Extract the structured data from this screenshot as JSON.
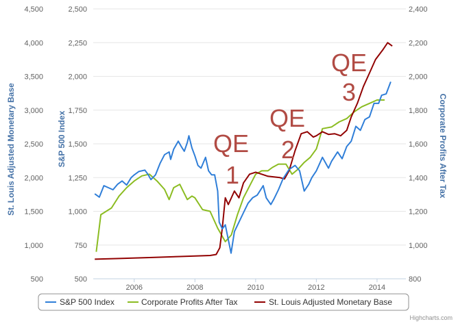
{
  "chart_data": {
    "type": "line",
    "x_ticks": [
      "2006",
      "2008",
      "2010",
      "2012",
      "2014"
    ],
    "axes": {
      "left_outer": {
        "label": "St. Louis Adjusted Monetary Base",
        "ticks": [
          "500",
          "1,000",
          "1,500",
          "2,000",
          "2,500",
          "3,000",
          "3,500",
          "4,000",
          "4,500"
        ],
        "range": [
          500,
          4500
        ]
      },
      "left_inner": {
        "label": "S&P 500 Index",
        "ticks": [
          "500",
          "750",
          "1,000",
          "1,250",
          "1,500",
          "1,750",
          "2,000",
          "2,250",
          "2,500"
        ],
        "range": [
          500,
          2500
        ]
      },
      "right": {
        "label": "Corporate Profits After Tax",
        "ticks": [
          "800",
          "1,000",
          "1,200",
          "1,400",
          "1,600",
          "1,800",
          "2,000",
          "2,200",
          "2,400"
        ],
        "range": [
          800,
          2400
        ]
      }
    },
    "xlim": [
      2004.65,
      2014.95
    ],
    "series": [
      {
        "name": "S&P 500 Index",
        "color": "#2f7ed8",
        "axis": "left_inner",
        "points": [
          [
            2004.7,
            1130
          ],
          [
            2004.85,
            1105
          ],
          [
            2005.0,
            1190
          ],
          [
            2005.15,
            1175
          ],
          [
            2005.3,
            1160
          ],
          [
            2005.45,
            1200
          ],
          [
            2005.6,
            1225
          ],
          [
            2005.75,
            1195
          ],
          [
            2005.9,
            1250
          ],
          [
            2006.0,
            1270
          ],
          [
            2006.15,
            1295
          ],
          [
            2006.35,
            1305
          ],
          [
            2006.45,
            1275
          ],
          [
            2006.55,
            1235
          ],
          [
            2006.7,
            1270
          ],
          [
            2006.85,
            1355
          ],
          [
            2007.0,
            1420
          ],
          [
            2007.15,
            1440
          ],
          [
            2007.2,
            1385
          ],
          [
            2007.3,
            1460
          ],
          [
            2007.45,
            1520
          ],
          [
            2007.55,
            1480
          ],
          [
            2007.65,
            1445
          ],
          [
            2007.75,
            1510
          ],
          [
            2007.8,
            1560
          ],
          [
            2007.9,
            1470
          ],
          [
            2008.0,
            1410
          ],
          [
            2008.1,
            1340
          ],
          [
            2008.2,
            1320
          ],
          [
            2008.35,
            1400
          ],
          [
            2008.45,
            1300
          ],
          [
            2008.55,
            1270
          ],
          [
            2008.65,
            1270
          ],
          [
            2008.75,
            1150
          ],
          [
            2008.8,
            920
          ],
          [
            2008.9,
            870
          ],
          [
            2009.0,
            900
          ],
          [
            2009.1,
            790
          ],
          [
            2009.19,
            690
          ],
          [
            2009.3,
            850
          ],
          [
            2009.45,
            920
          ],
          [
            2009.6,
            990
          ],
          [
            2009.75,
            1060
          ],
          [
            2009.9,
            1100
          ],
          [
            2010.05,
            1120
          ],
          [
            2010.25,
            1190
          ],
          [
            2010.35,
            1100
          ],
          [
            2010.5,
            1050
          ],
          [
            2010.6,
            1090
          ],
          [
            2010.75,
            1160
          ],
          [
            2010.9,
            1240
          ],
          [
            2011.1,
            1310
          ],
          [
            2011.3,
            1340
          ],
          [
            2011.45,
            1300
          ],
          [
            2011.6,
            1150
          ],
          [
            2011.75,
            1200
          ],
          [
            2011.85,
            1250
          ],
          [
            2012.0,
            1300
          ],
          [
            2012.2,
            1400
          ],
          [
            2012.4,
            1320
          ],
          [
            2012.5,
            1370
          ],
          [
            2012.7,
            1440
          ],
          [
            2012.85,
            1390
          ],
          [
            2013.0,
            1480
          ],
          [
            2013.15,
            1520
          ],
          [
            2013.3,
            1630
          ],
          [
            2013.45,
            1600
          ],
          [
            2013.6,
            1680
          ],
          [
            2013.75,
            1700
          ],
          [
            2013.9,
            1800
          ],
          [
            2014.05,
            1800
          ],
          [
            2014.15,
            1860
          ],
          [
            2014.3,
            1870
          ],
          [
            2014.45,
            1960
          ]
        ]
      },
      {
        "name": "Corporate Profits After Tax",
        "color": "#8bbc21",
        "axis": "right",
        "points": [
          [
            2004.75,
            960
          ],
          [
            2004.9,
            1180
          ],
          [
            2005.25,
            1220
          ],
          [
            2005.5,
            1290
          ],
          [
            2005.75,
            1340
          ],
          [
            2006.0,
            1380
          ],
          [
            2006.25,
            1410
          ],
          [
            2006.5,
            1420
          ],
          [
            2006.75,
            1380
          ],
          [
            2007.0,
            1330
          ],
          [
            2007.15,
            1270
          ],
          [
            2007.3,
            1340
          ],
          [
            2007.5,
            1360
          ],
          [
            2007.75,
            1270
          ],
          [
            2007.9,
            1290
          ],
          [
            2008.0,
            1280
          ],
          [
            2008.25,
            1210
          ],
          [
            2008.5,
            1200
          ],
          [
            2008.75,
            1100
          ],
          [
            2009.0,
            1020
          ],
          [
            2009.2,
            1060
          ],
          [
            2009.4,
            1180
          ],
          [
            2009.6,
            1280
          ],
          [
            2009.8,
            1350
          ],
          [
            2010.0,
            1420
          ],
          [
            2010.2,
            1440
          ],
          [
            2010.4,
            1440
          ],
          [
            2010.55,
            1460
          ],
          [
            2010.75,
            1480
          ],
          [
            2011.0,
            1480
          ],
          [
            2011.2,
            1420
          ],
          [
            2011.4,
            1450
          ],
          [
            2011.6,
            1490
          ],
          [
            2011.8,
            1520
          ],
          [
            2012.0,
            1570
          ],
          [
            2012.2,
            1690
          ],
          [
            2012.5,
            1700
          ],
          [
            2012.75,
            1730
          ],
          [
            2013.0,
            1750
          ],
          [
            2013.25,
            1790
          ],
          [
            2013.5,
            1820
          ],
          [
            2013.75,
            1840
          ],
          [
            2014.0,
            1860
          ],
          [
            2014.25,
            1860
          ]
        ]
      },
      {
        "name": "St. Louis Adjusted Monetary Base",
        "color": "#910000",
        "axis": "left_outer",
        "points": [
          [
            2004.7,
            790
          ],
          [
            2005.5,
            800
          ],
          [
            2006.5,
            815
          ],
          [
            2007.5,
            830
          ],
          [
            2008.5,
            845
          ],
          [
            2008.7,
            860
          ],
          [
            2008.82,
            960
          ],
          [
            2008.9,
            1250
          ],
          [
            2009.0,
            1700
          ],
          [
            2009.1,
            1600
          ],
          [
            2009.3,
            1800
          ],
          [
            2009.45,
            1700
          ],
          [
            2009.6,
            1920
          ],
          [
            2009.8,
            2050
          ],
          [
            2010.0,
            2080
          ],
          [
            2010.2,
            2050
          ],
          [
            2010.4,
            2020
          ],
          [
            2010.6,
            2010
          ],
          [
            2010.8,
            2000
          ],
          [
            2010.95,
            1980
          ],
          [
            2011.1,
            2100
          ],
          [
            2011.3,
            2400
          ],
          [
            2011.5,
            2650
          ],
          [
            2011.7,
            2680
          ],
          [
            2011.9,
            2600
          ],
          [
            2012.0,
            2620
          ],
          [
            2012.2,
            2680
          ],
          [
            2012.4,
            2640
          ],
          [
            2012.6,
            2650
          ],
          [
            2012.8,
            2620
          ],
          [
            2013.0,
            2700
          ],
          [
            2013.15,
            2900
          ],
          [
            2013.35,
            3100
          ],
          [
            2013.55,
            3350
          ],
          [
            2013.75,
            3550
          ],
          [
            2013.95,
            3750
          ],
          [
            2014.2,
            3900
          ],
          [
            2014.35,
            4000
          ],
          [
            2014.5,
            3950
          ]
        ]
      }
    ],
    "annotations": [
      "QE",
      "1",
      "QE",
      "2",
      "QE",
      "3"
    ],
    "grid": true,
    "legend": "bottom"
  },
  "credits": "Highcharts.com"
}
